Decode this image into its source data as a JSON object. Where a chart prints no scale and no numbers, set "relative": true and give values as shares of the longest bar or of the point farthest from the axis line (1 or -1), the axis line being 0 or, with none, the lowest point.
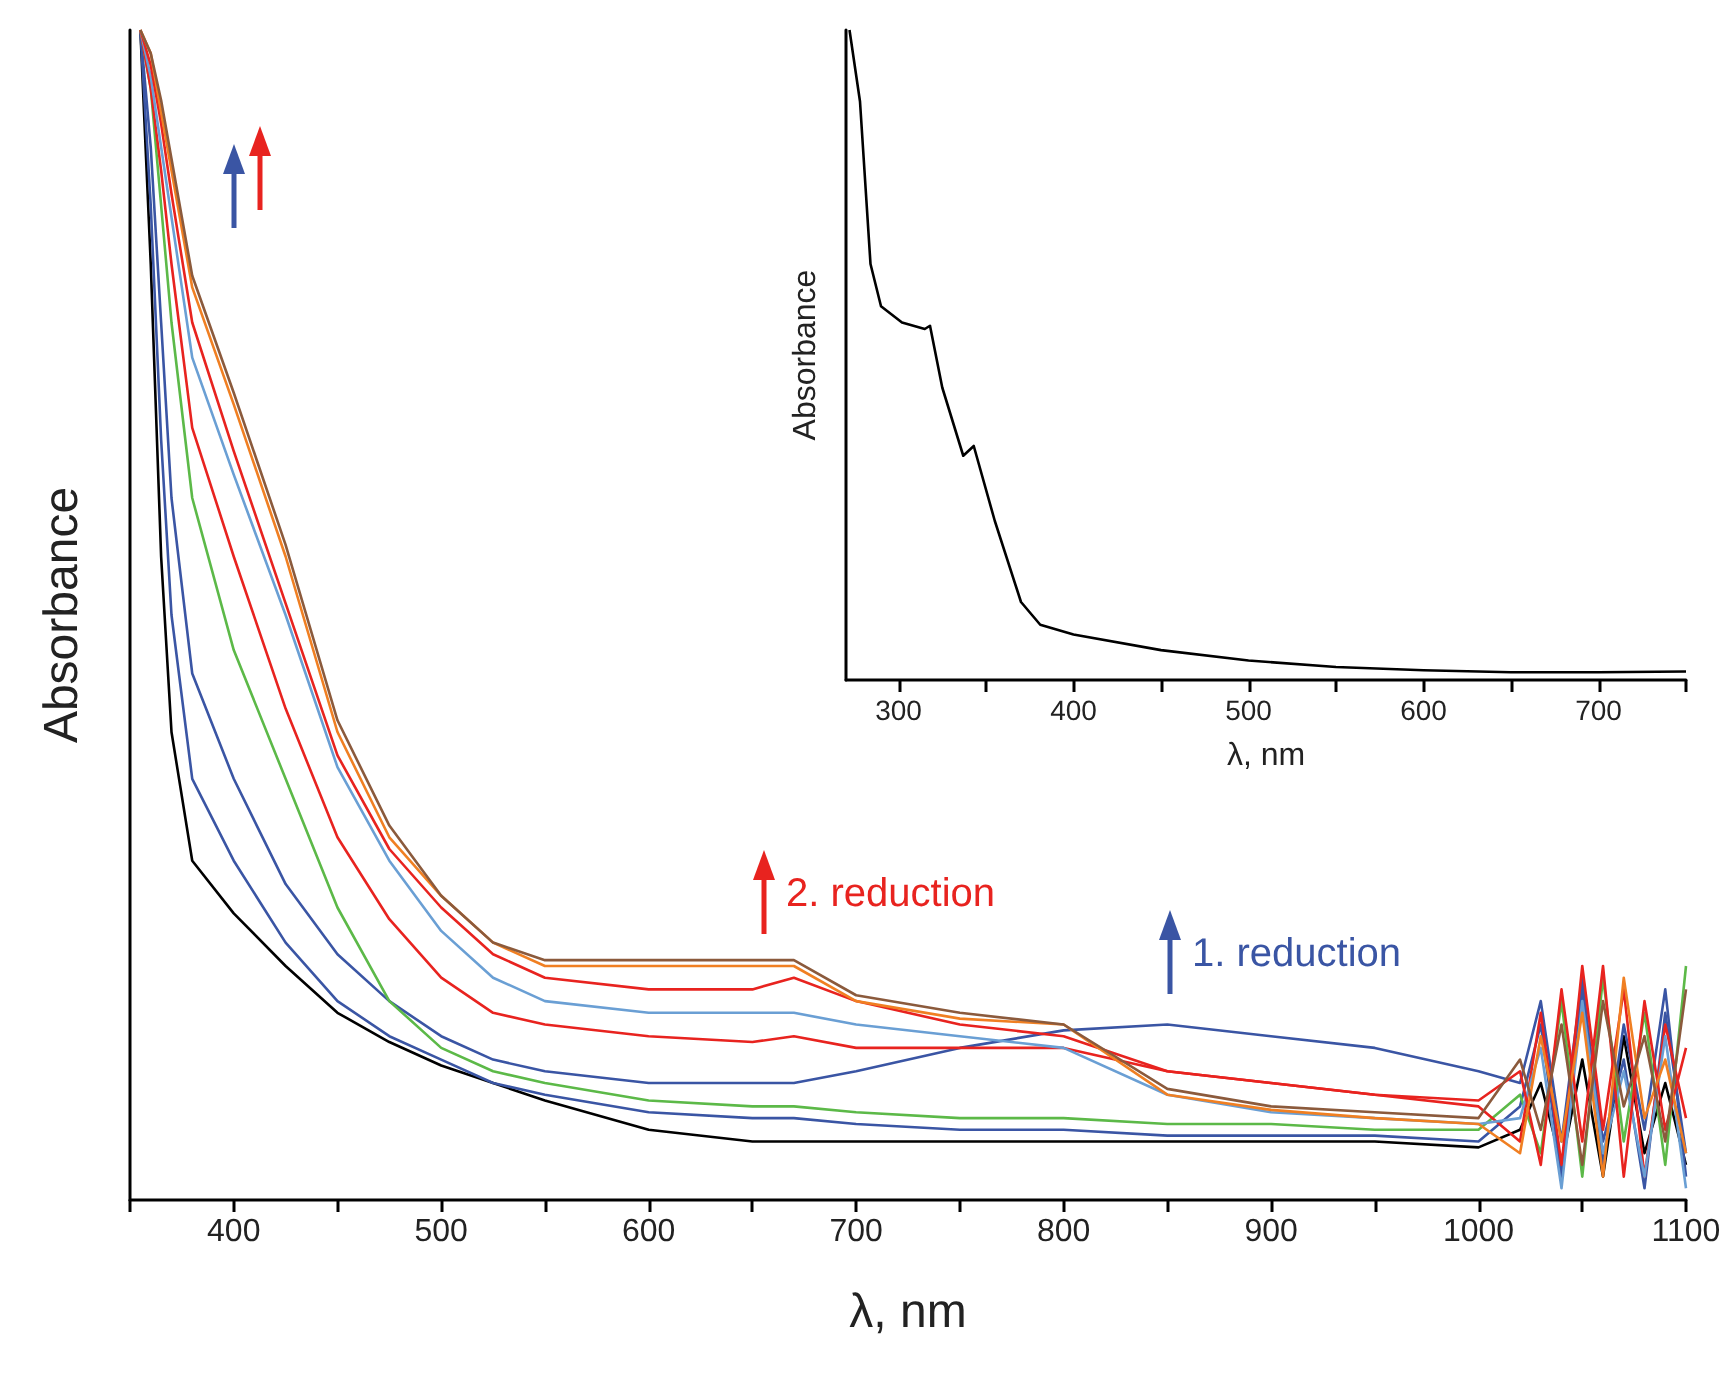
{
  "chart_data": [
    {
      "type": "line",
      "relative": true,
      "xlabel": "λ, nm",
      "ylabel": "Absorbance",
      "x": [
        355,
        360,
        365,
        370,
        380,
        400,
        425,
        450,
        475,
        500,
        525,
        550,
        600,
        650,
        670,
        700,
        750,
        800,
        850,
        900,
        950,
        1000,
        1020,
        1030,
        1040,
        1050,
        1060,
        1070,
        1080,
        1090,
        1100
      ],
      "xlim": [
        350,
        1100
      ],
      "xticks": [
        {
          "value": 350,
          "label": null
        },
        400,
        {
          "value": 450,
          "label": null
        },
        500,
        {
          "value": 550,
          "label": null
        },
        600,
        {
          "value": 650,
          "label": null
        },
        700,
        {
          "value": 750,
          "label": null
        },
        800,
        {
          "value": 850,
          "label": null
        },
        900,
        {
          "value": 950,
          "label": null
        },
        1000,
        {
          "value": 1050,
          "label": null
        },
        1100
      ],
      "marker": "none",
      "line_style": "solid",
      "series": [
        {
          "color": "#000000",
          "values": [
            1.0,
            0.8,
            0.55,
            0.4,
            0.29,
            0.245,
            0.2,
            0.16,
            0.135,
            0.115,
            0.1,
            0.085,
            0.06,
            0.05,
            0.05,
            0.05,
            0.05,
            0.05,
            0.05,
            0.05,
            0.05,
            0.045,
            0.06,
            0.1,
            0.03,
            0.12,
            0.02,
            0.14,
            0.04,
            0.1,
            0.03
          ]
        },
        {
          "color": "#3a55a4",
          "values": [
            1.0,
            0.85,
            0.65,
            0.5,
            0.36,
            0.29,
            0.22,
            0.17,
            0.14,
            0.12,
            0.1,
            0.09,
            0.075,
            0.07,
            0.07,
            0.065,
            0.06,
            0.06,
            0.055,
            0.055,
            0.055,
            0.05,
            0.08,
            0.15,
            0.02,
            0.18,
            0.05,
            0.12,
            0.01,
            0.16,
            0.04
          ]
        },
        {
          "color": "#3a55a4",
          "values": [
            1.0,
            0.9,
            0.75,
            0.6,
            0.45,
            0.36,
            0.27,
            0.21,
            0.17,
            0.14,
            0.12,
            0.11,
            0.1,
            0.1,
            0.1,
            0.11,
            0.13,
            0.145,
            0.15,
            0.14,
            0.13,
            0.11,
            0.1,
            0.17,
            0.05,
            0.19,
            0.03,
            0.15,
            0.06,
            0.18,
            0.02
          ]
        },
        {
          "color": "#5cb948",
          "values": [
            1.0,
            0.95,
            0.85,
            0.75,
            0.6,
            0.47,
            0.36,
            0.25,
            0.17,
            0.13,
            0.11,
            0.1,
            0.085,
            0.08,
            0.08,
            0.075,
            0.07,
            0.07,
            0.065,
            0.065,
            0.06,
            0.06,
            0.09,
            0.04,
            0.17,
            0.02,
            0.19,
            0.05,
            0.16,
            0.03,
            0.2
          ]
        },
        {
          "color": "#e8231f",
          "values": [
            1.0,
            0.95,
            0.88,
            0.8,
            0.66,
            0.55,
            0.42,
            0.31,
            0.24,
            0.19,
            0.16,
            0.15,
            0.14,
            0.135,
            0.14,
            0.13,
            0.13,
            0.13,
            0.11,
            0.1,
            0.09,
            0.08,
            0.05,
            0.16,
            0.03,
            0.2,
            0.06,
            0.18,
            0.02,
            0.15,
            0.07
          ]
        },
        {
          "color": "#6a9fd4",
          "values": [
            1.0,
            0.96,
            0.9,
            0.84,
            0.72,
            0.62,
            0.5,
            0.37,
            0.29,
            0.23,
            0.19,
            0.17,
            0.16,
            0.16,
            0.16,
            0.15,
            0.14,
            0.13,
            0.09,
            0.075,
            0.07,
            0.065,
            0.07,
            0.13,
            0.01,
            0.17,
            0.04,
            0.11,
            0.02,
            0.14,
            0.01
          ]
        },
        {
          "color": "#e8231f",
          "values": [
            1.0,
            0.97,
            0.92,
            0.86,
            0.75,
            0.64,
            0.51,
            0.38,
            0.3,
            0.25,
            0.21,
            0.19,
            0.18,
            0.18,
            0.19,
            0.17,
            0.15,
            0.14,
            0.11,
            0.1,
            0.09,
            0.085,
            0.11,
            0.03,
            0.18,
            0.05,
            0.2,
            0.02,
            0.17,
            0.06,
            0.13
          ]
        },
        {
          "color": "#f07f22",
          "values": [
            1.0,
            0.98,
            0.93,
            0.88,
            0.78,
            0.68,
            0.55,
            0.4,
            0.31,
            0.26,
            0.22,
            0.2,
            0.2,
            0.2,
            0.2,
            0.17,
            0.155,
            0.15,
            0.09,
            0.077,
            0.07,
            0.065,
            0.04,
            0.14,
            0.05,
            0.16,
            0.02,
            0.19,
            0.07,
            0.12,
            0.04
          ]
        },
        {
          "color": "#8b5a3c",
          "values": [
            1.0,
            0.98,
            0.94,
            0.89,
            0.79,
            0.69,
            0.56,
            0.41,
            0.32,
            0.26,
            0.22,
            0.205,
            0.205,
            0.205,
            0.205,
            0.175,
            0.16,
            0.15,
            0.095,
            0.08,
            0.075,
            0.07,
            0.12,
            0.06,
            0.15,
            0.03,
            0.17,
            0.08,
            0.14,
            0.05,
            0.18
          ]
        }
      ],
      "annotations": [
        "2. reduction",
        "1. reduction"
      ]
    },
    {
      "type": "line",
      "relative": true,
      "xlabel": "λ, nm",
      "ylabel": "Absorbance",
      "x": [
        272,
        278,
        284,
        290,
        302,
        315,
        318,
        325,
        337,
        343,
        355,
        370,
        381,
        400,
        450,
        500,
        550,
        600,
        650,
        700,
        750
      ],
      "xlim": [
        270,
        750
      ],
      "xticks": [
        300,
        {
          "value": 350,
          "label": null
        },
        400,
        {
          "value": 450,
          "label": null
        },
        500,
        {
          "value": 550,
          "label": null
        },
        600,
        {
          "value": 650,
          "label": null
        },
        700,
        {
          "value": 750,
          "label": null
        }
      ],
      "marker": "none",
      "line_style": "solid",
      "series": [
        {
          "color": "#000000",
          "values": [
            1.0,
            0.89,
            0.64,
            0.575,
            0.55,
            0.54,
            0.545,
            0.45,
            0.345,
            0.36,
            0.245,
            0.12,
            0.085,
            0.07,
            0.046,
            0.03,
            0.02,
            0.015,
            0.012,
            0.012,
            0.013
          ]
        }
      ]
    }
  ]
}
